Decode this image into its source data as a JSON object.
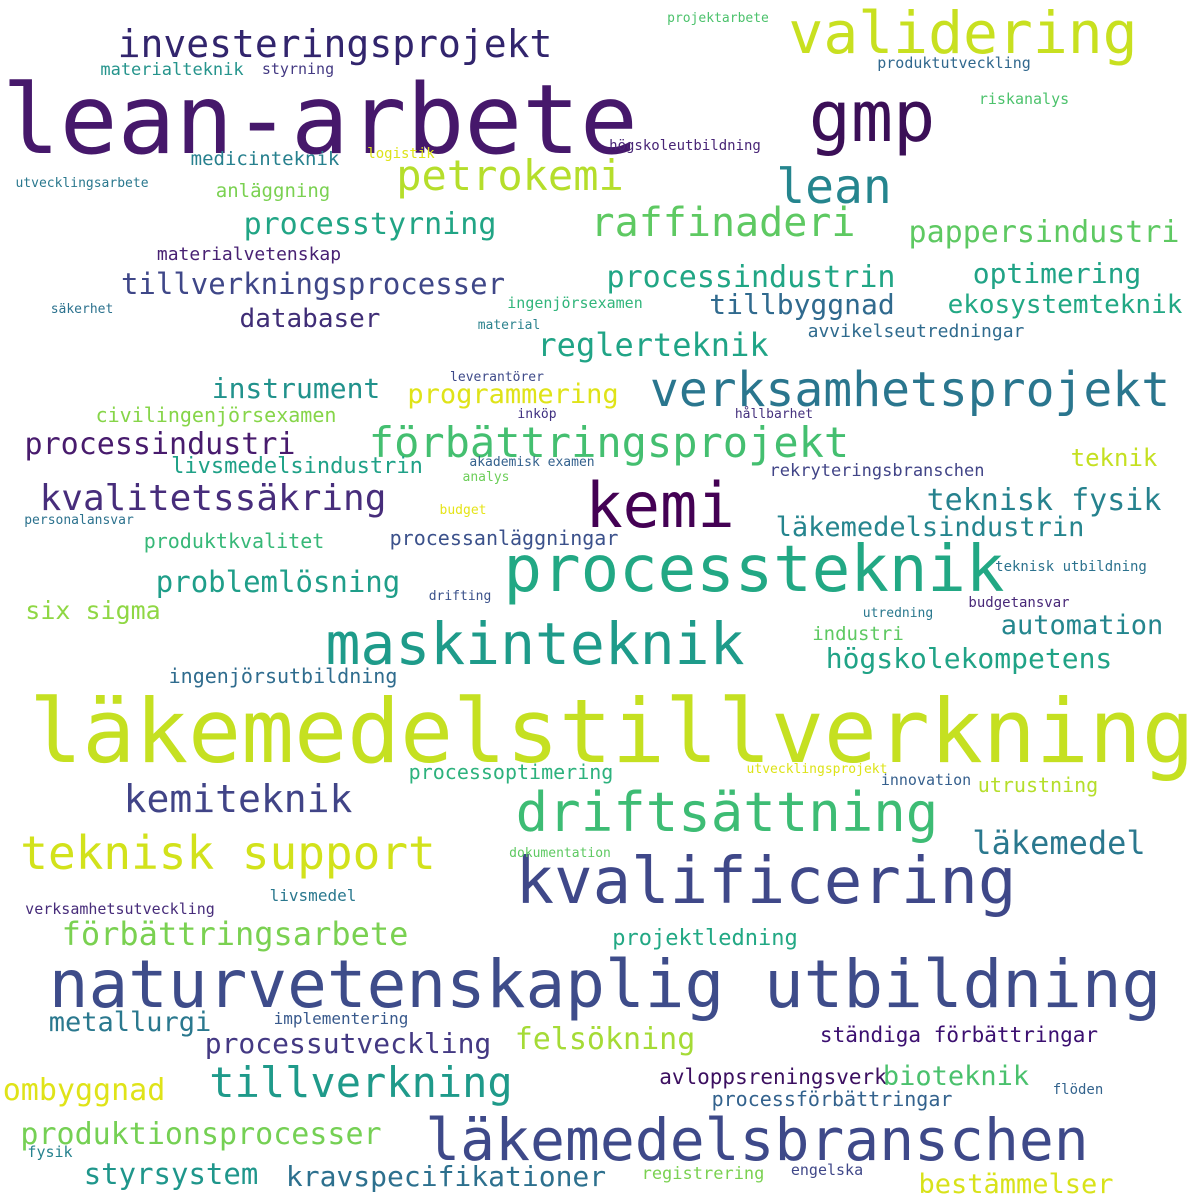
{
  "words": [
    {
      "text": "lean-arbete",
      "color": "#46186b"
    },
    {
      "text": "gmp",
      "color": "#3b0f57"
    },
    {
      "text": "validering",
      "color": "#c8e020"
    },
    {
      "text": "investeringsprojekt",
      "color": "#32256d"
    },
    {
      "text": "projektarbete",
      "color": "#4cc26c"
    },
    {
      "text": "materialteknik",
      "color": "#25948c"
    },
    {
      "text": "styrning",
      "color": "#443a83"
    },
    {
      "text": "produktutveckling",
      "color": "#31688e"
    },
    {
      "text": "riskanalys",
      "color": "#4cc26c"
    },
    {
      "text": "högskoleutbildning",
      "color": "#482576"
    },
    {
      "text": "medicinteknik",
      "color": "#27808e"
    },
    {
      "text": "logistik",
      "color": "#dde318"
    },
    {
      "text": "petrokemi",
      "color": "#b5de2b"
    },
    {
      "text": "lean",
      "color": "#25858e"
    },
    {
      "text": "utvecklingsarbete",
      "color": "#2a788e"
    },
    {
      "text": "anläggning",
      "color": "#7ad151"
    },
    {
      "text": "processtyrning",
      "color": "#21a585"
    },
    {
      "text": "raffinaderi",
      "color": "#5ec962"
    },
    {
      "text": "pappersindustri",
      "color": "#5ec962"
    },
    {
      "text": "materialvetenskap",
      "color": "#482173"
    },
    {
      "text": "tillverkningsprocesser",
      "color": "#3f4788"
    },
    {
      "text": "processindustrin",
      "color": "#21a685"
    },
    {
      "text": "optimering",
      "color": "#20a386"
    },
    {
      "text": "tillbyggnad",
      "color": "#306a8e"
    },
    {
      "text": "ekosystemteknik",
      "color": "#22a884"
    },
    {
      "text": "databaser",
      "color": "#3f2d76"
    },
    {
      "text": "säkerhet",
      "color": "#2c728e"
    },
    {
      "text": "ingenjörsexamen",
      "color": "#31b57b"
    },
    {
      "text": "material",
      "color": "#2c838e"
    },
    {
      "text": "avvikelseutredningar",
      "color": "#2f6b8e"
    },
    {
      "text": "reglerteknik",
      "color": "#20a486"
    },
    {
      "text": "instrument",
      "color": "#21928c"
    },
    {
      "text": "programmering",
      "color": "#dfe318"
    },
    {
      "text": "verksamhetsprojekt",
      "color": "#2a768e"
    },
    {
      "text": "leverantörer",
      "color": "#3e4a89"
    },
    {
      "text": "civilingenjörsexamen",
      "color": "#86d549"
    },
    {
      "text": "inköp",
      "color": "#3e2f80"
    },
    {
      "text": "hållbarhet",
      "color": "#46327e"
    },
    {
      "text": "processindustri",
      "color": "#481b6d"
    },
    {
      "text": "förbättringsprojekt",
      "color": "#44bf70"
    },
    {
      "text": "livsmedelsindustrin",
      "color": "#1fa187"
    },
    {
      "text": "akademisk examen",
      "color": "#34618d"
    },
    {
      "text": "analys",
      "color": "#6cce59"
    },
    {
      "text": "rekryteringsbranschen",
      "color": "#414487"
    },
    {
      "text": "teknik",
      "color": "#c5e021"
    },
    {
      "text": "kvalitetssäkring",
      "color": "#472d7b"
    },
    {
      "text": "kemi",
      "color": "#440154"
    },
    {
      "text": "teknisk fysik",
      "color": "#26828e"
    },
    {
      "text": "budget",
      "color": "#e5e419"
    },
    {
      "text": "personalansvar",
      "color": "#2c728e"
    },
    {
      "text": "produktkvalitet",
      "color": "#37b878"
    },
    {
      "text": "processanläggningar",
      "color": "#3b518b"
    },
    {
      "text": "läkemedelsindustrin",
      "color": "#25858e"
    },
    {
      "text": "processteknik",
      "color": "#22a884"
    },
    {
      "text": "problemlösning",
      "color": "#1f9e89"
    },
    {
      "text": "drifting",
      "color": "#3b528b"
    },
    {
      "text": "teknisk utbildning",
      "color": "#2c728e"
    },
    {
      "text": "six sigma",
      "color": "#8fd744"
    },
    {
      "text": "budgetansvar",
      "color": "#482878"
    },
    {
      "text": "utredning",
      "color": "#2a788e"
    },
    {
      "text": "maskinteknik",
      "color": "#1e9b8a"
    },
    {
      "text": "automation",
      "color": "#24868e"
    },
    {
      "text": "industri",
      "color": "#5ec962"
    },
    {
      "text": "högskolekompetens",
      "color": "#20a386"
    },
    {
      "text": "ingenjörsutbildning",
      "color": "#2f6c8e"
    },
    {
      "text": "läkemedelstillverkning",
      "color": "#c5e021"
    },
    {
      "text": "processoptimering",
      "color": "#2db27d"
    },
    {
      "text": "utvecklingsprojekt",
      "color": "#dde318"
    },
    {
      "text": "innovation",
      "color": "#355f8d"
    },
    {
      "text": "utrustning",
      "color": "#b5de2b"
    },
    {
      "text": "kemiteknik",
      "color": "#414487"
    },
    {
      "text": "driftsättning",
      "color": "#3dbc74"
    },
    {
      "text": "teknisk support",
      "color": "#d2e21b"
    },
    {
      "text": "läkemedel",
      "color": "#2a788e"
    },
    {
      "text": "kvalificering",
      "color": "#3f4889"
    },
    {
      "text": "dokumentation",
      "color": "#5ec962"
    },
    {
      "text": "livsmedel",
      "color": "#2a788e"
    },
    {
      "text": "verksamhetsutveckling",
      "color": "#472c7a"
    },
    {
      "text": "förbättringsarbete",
      "color": "#7ad151"
    },
    {
      "text": "projektledning",
      "color": "#22a884"
    },
    {
      "text": "naturvetenskaplig utbildning",
      "color": "#3e4c8a"
    },
    {
      "text": "metallurgi",
      "color": "#2a788e"
    },
    {
      "text": "implementering",
      "color": "#38598c"
    },
    {
      "text": "processutveckling",
      "color": "#443983"
    },
    {
      "text": "felsökning",
      "color": "#a5db36"
    },
    {
      "text": "ständiga förbättringar",
      "color": "#3b0f70"
    },
    {
      "text": "tillverkning",
      "color": "#1f9a8a"
    },
    {
      "text": "ombyggnad",
      "color": "#dfe318"
    },
    {
      "text": "avloppsreningsverk",
      "color": "#3c0f60"
    },
    {
      "text": "bioteknik",
      "color": "#4ac16d"
    },
    {
      "text": "flöden",
      "color": "#33638d"
    },
    {
      "text": "processförbättringar",
      "color": "#33628d"
    },
    {
      "text": "produktionsprocesser",
      "color": "#75d054"
    },
    {
      "text": "läkemedelsbranschen",
      "color": "#3e4989"
    },
    {
      "text": "fysik",
      "color": "#26828e"
    },
    {
      "text": "styrsystem",
      "color": "#1f968b"
    },
    {
      "text": "kravspecifikationer",
      "color": "#2d708e"
    },
    {
      "text": "registrering",
      "color": "#7ad151"
    },
    {
      "text": "engelska",
      "color": "#3f4788"
    },
    {
      "text": "bestämmelser",
      "color": "#d8e219"
    }
  ]
}
